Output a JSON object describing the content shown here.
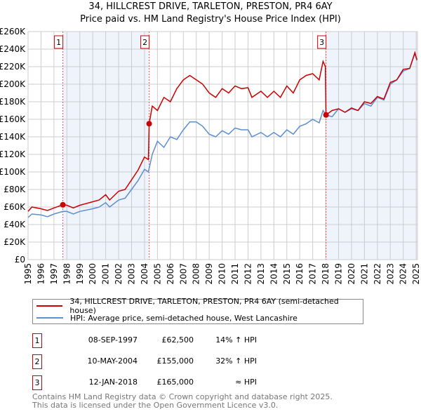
{
  "chart_data": {
    "type": "line",
    "title": "34, HILLCREST DRIVE, TARLETON, PRESTON, PR4 6AY",
    "subtitle": "Price paid vs. HM Land Registry's House Price Index (HPI)",
    "xlim": [
      1995,
      2025.1
    ],
    "ylim": [
      0,
      260000
    ],
    "y_ticks": [
      0,
      20000,
      40000,
      60000,
      80000,
      100000,
      120000,
      140000,
      160000,
      180000,
      200000,
      220000,
      240000,
      260000
    ],
    "y_tick_labels": [
      "£0",
      "£20K",
      "£40K",
      "£60K",
      "£80K",
      "£100K",
      "£120K",
      "£140K",
      "£160K",
      "£180K",
      "£200K",
      "£220K",
      "£240K",
      "£260K"
    ],
    "x_ticks": [
      1995,
      1996,
      1997,
      1998,
      1999,
      2000,
      2001,
      2002,
      2003,
      2004,
      2005,
      2006,
      2007,
      2008,
      2009,
      2010,
      2011,
      2012,
      2013,
      2014,
      2015,
      2016,
      2017,
      2018,
      2019,
      2020,
      2021,
      2022,
      2023,
      2024,
      2025
    ],
    "x_tick_labels": [
      "1995",
      "1996",
      "1997",
      "1998",
      "1999",
      "2000",
      "2001",
      "2002",
      "2003",
      "2004",
      "2005",
      "2006",
      "2007",
      "2008",
      "2009",
      "2010",
      "2011",
      "2012",
      "2013",
      "2014",
      "2015",
      "2016",
      "2017",
      "2018",
      "2019",
      "2020",
      "2021",
      "2022",
      "2023",
      "2024",
      "2025"
    ],
    "grid": true,
    "series": [
      {
        "name": "34, HILLCREST DRIVE, TARLETON, PRESTON, PR4 6AY (semi-detached house)",
        "color": "#cc0000",
        "x": [
          1995,
          1995.3,
          1996,
          1996.5,
          1997,
          1997.69,
          1998,
          1998.5,
          1999,
          2000,
          2000.5,
          2001,
          2001.3,
          2002,
          2002.5,
          2003,
          2003.5,
          2004,
          2004.3,
          2004.36,
          2004.6,
          2005,
          2005.5,
          2006,
          2006.5,
          2007,
          2007.5,
          2008,
          2008.5,
          2009,
          2009.5,
          2010,
          2010.5,
          2011,
          2011.5,
          2012,
          2012.3,
          2013,
          2013.5,
          2014,
          2014.5,
          2015,
          2015.5,
          2016,
          2016.5,
          2017,
          2017.5,
          2017.8,
          2017.98,
          2018.03,
          2018.5,
          2019,
          2019.5,
          2020,
          2020.5,
          2021,
          2021.5,
          2022,
          2022.5,
          2023,
          2023.5,
          2024,
          2024.5,
          2024.9,
          2025.05
        ],
        "y": [
          55000,
          60000,
          58000,
          56000,
          59000,
          62500,
          62000,
          59000,
          62000,
          66000,
          68000,
          74000,
          68000,
          78000,
          80000,
          91000,
          102000,
          117000,
          114000,
          155000,
          175000,
          170000,
          185000,
          180000,
          195000,
          205000,
          210000,
          205000,
          200000,
          190000,
          185000,
          195000,
          190000,
          198000,
          195000,
          196000,
          185000,
          192000,
          185000,
          192000,
          185000,
          198000,
          190000,
          205000,
          210000,
          212000,
          205000,
          226000,
          220000,
          165000,
          170000,
          172000,
          168000,
          173000,
          170000,
          180000,
          178000,
          186000,
          183000,
          202000,
          205000,
          217000,
          218000,
          236000,
          228000
        ]
      },
      {
        "name": "HPI: Average price, semi-detached house, West Lancashire",
        "color": "#5b8fd0",
        "x": [
          1995,
          1995.3,
          1996,
          1996.5,
          1997,
          1997.69,
          1998,
          1998.5,
          1999,
          2000,
          2000.5,
          2001,
          2001.3,
          2002,
          2002.5,
          2003,
          2003.5,
          2004,
          2004.3,
          2004.6,
          2005,
          2005.5,
          2006,
          2006.5,
          2007,
          2007.5,
          2008,
          2008.5,
          2009,
          2009.5,
          2010,
          2010.5,
          2011,
          2011.5,
          2012,
          2012.3,
          2013,
          2013.5,
          2014,
          2014.5,
          2015,
          2015.5,
          2016,
          2016.5,
          2017,
          2017.5,
          2017.8,
          2018.03,
          2018.5,
          2019,
          2019.5,
          2020,
          2020.5,
          2021,
          2021.5,
          2022,
          2022.5,
          2023,
          2023.5,
          2024,
          2024.5,
          2024.9,
          2025.05
        ],
        "y": [
          48000,
          52000,
          51000,
          49000,
          52000,
          55000,
          55000,
          52000,
          55000,
          58000,
          60000,
          65000,
          60000,
          68000,
          70000,
          80000,
          90000,
          103000,
          100000,
          120000,
          135000,
          128000,
          140000,
          137000,
          148000,
          157000,
          157000,
          152000,
          143000,
          140000,
          147000,
          143000,
          150000,
          148000,
          148000,
          140000,
          145000,
          140000,
          145000,
          140000,
          148000,
          143000,
          152000,
          155000,
          160000,
          156000,
          170000,
          165000,
          163000,
          172000,
          168000,
          172000,
          170000,
          178000,
          175000,
          185000,
          182000,
          200000,
          205000,
          215000,
          218000,
          235000,
          227000
        ]
      }
    ],
    "sales": [
      {
        "label": "1",
        "x": 1997.69,
        "y": 62500
      },
      {
        "label": "2",
        "x": 2004.36,
        "y": 155000
      },
      {
        "label": "3",
        "x": 2018.03,
        "y": 165000
      }
    ],
    "legend_placement": "below"
  },
  "transactions": [
    {
      "num": "1",
      "date": "08-SEP-1997",
      "price": "£62,500",
      "hpi": "14% ↑ HPI"
    },
    {
      "num": "2",
      "date": "10-MAY-2004",
      "price": "£155,000",
      "hpi": "32% ↑ HPI"
    },
    {
      "num": "3",
      "date": "12-JAN-2018",
      "price": "£165,000",
      "hpi": "≈ HPI"
    }
  ],
  "footer": {
    "line1": "Contains HM Land Registry data © Crown copyright and database right 2025.",
    "line2": "This data is licensed under the Open Government Licence v3.0."
  }
}
